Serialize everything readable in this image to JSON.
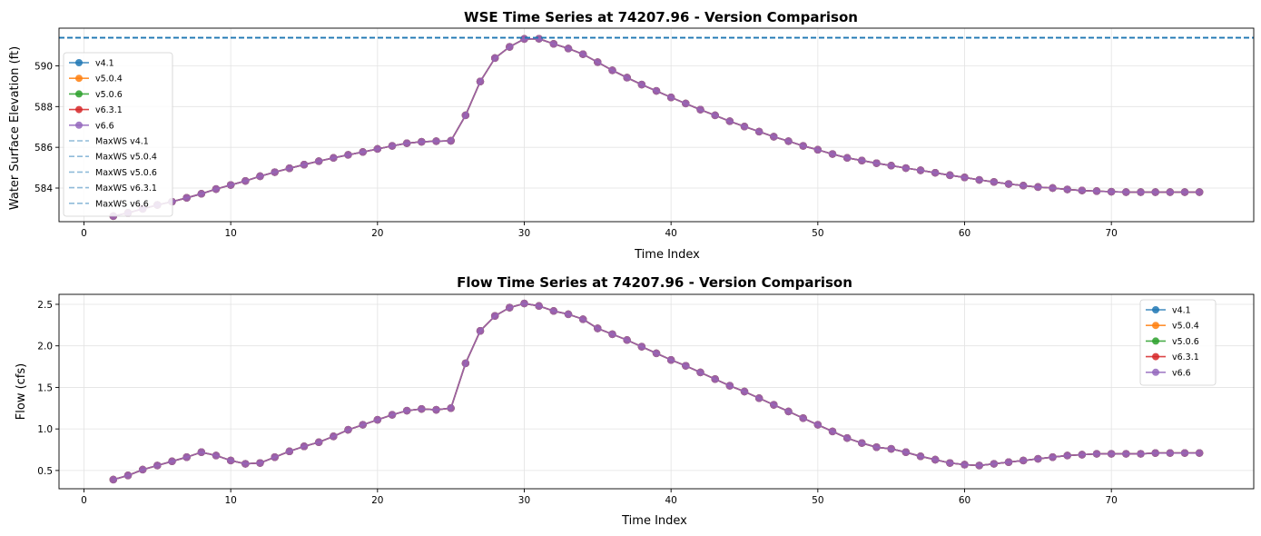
{
  "chart_data": [
    {
      "type": "line",
      "title": "WSE Time Series at 74207.96 - Version Comparison",
      "xlabel": "Time Index",
      "ylabel": "Water Surface Elevation (ft)",
      "xlim": [
        -1.7,
        79.7
      ],
      "ylim": [
        582.35,
        591.85
      ],
      "xticks": [
        0,
        10,
        20,
        30,
        40,
        50,
        60,
        70
      ],
      "yticks": [
        584,
        586,
        588,
        590
      ],
      "grid": true,
      "legend_position": "upper-left",
      "x": [
        2,
        3,
        4,
        5,
        6,
        7,
        8,
        9,
        10,
        11,
        12,
        13,
        14,
        15,
        16,
        17,
        18,
        19,
        20,
        21,
        22,
        23,
        24,
        25,
        26,
        27,
        28,
        29,
        30,
        31,
        32,
        33,
        34,
        35,
        36,
        37,
        38,
        39,
        40,
        41,
        42,
        43,
        44,
        45,
        46,
        47,
        48,
        49,
        50,
        51,
        52,
        53,
        54,
        55,
        56,
        57,
        58,
        59,
        60,
        61,
        62,
        63,
        64,
        65,
        66,
        67,
        68,
        69,
        70,
        71,
        72,
        73,
        74,
        75,
        76
      ],
      "series": [
        {
          "name": "v4.1",
          "color": "#1f77b4",
          "style": "line-marker",
          "values": [
            582.62,
            582.78,
            582.98,
            583.17,
            583.33,
            583.52,
            583.72,
            583.95,
            584.15,
            584.35,
            584.58,
            584.78,
            584.97,
            585.15,
            585.32,
            585.48,
            585.63,
            585.77,
            585.92,
            586.07,
            586.2,
            586.27,
            586.3,
            586.32,
            587.57,
            589.23,
            590.38,
            590.93,
            591.32,
            591.33,
            591.08,
            590.85,
            590.57,
            590.18,
            589.78,
            589.42,
            589.08,
            588.77,
            588.45,
            588.15,
            587.85,
            587.57,
            587.28,
            587.02,
            586.77,
            586.52,
            586.3,
            586.07,
            585.88,
            585.67,
            585.48,
            585.35,
            585.22,
            585.1,
            584.98,
            584.87,
            584.75,
            584.63,
            584.52,
            584.4,
            584.3,
            584.2,
            584.12,
            584.05,
            584.0,
            583.93,
            583.88,
            583.85,
            583.82,
            583.8,
            583.8,
            583.8,
            583.8,
            583.8,
            583.8
          ]
        },
        {
          "name": "v5.0.4",
          "color": "#ff7f0e",
          "style": "line-marker",
          "values": [
            582.62,
            582.78,
            582.98,
            583.17,
            583.33,
            583.52,
            583.72,
            583.95,
            584.15,
            584.35,
            584.58,
            584.78,
            584.97,
            585.15,
            585.32,
            585.48,
            585.63,
            585.77,
            585.92,
            586.07,
            586.2,
            586.27,
            586.3,
            586.32,
            587.57,
            589.23,
            590.38,
            590.93,
            591.32,
            591.33,
            591.08,
            590.85,
            590.57,
            590.18,
            589.78,
            589.42,
            589.08,
            588.77,
            588.45,
            588.15,
            587.85,
            587.57,
            587.28,
            587.02,
            586.77,
            586.52,
            586.3,
            586.07,
            585.88,
            585.67,
            585.48,
            585.35,
            585.22,
            585.1,
            584.98,
            584.87,
            584.75,
            584.63,
            584.52,
            584.4,
            584.3,
            584.2,
            584.12,
            584.05,
            584.0,
            583.93,
            583.88,
            583.85,
            583.82,
            583.8,
            583.8,
            583.8,
            583.8,
            583.8,
            583.8
          ]
        },
        {
          "name": "v5.0.6",
          "color": "#2ca02c",
          "style": "line-marker",
          "values": [
            582.62,
            582.78,
            582.98,
            583.17,
            583.33,
            583.52,
            583.72,
            583.95,
            584.15,
            584.35,
            584.58,
            584.78,
            584.97,
            585.15,
            585.32,
            585.48,
            585.63,
            585.77,
            585.92,
            586.07,
            586.2,
            586.27,
            586.3,
            586.32,
            587.57,
            589.23,
            590.38,
            590.93,
            591.32,
            591.33,
            591.08,
            590.85,
            590.57,
            590.18,
            589.78,
            589.42,
            589.08,
            588.77,
            588.45,
            588.15,
            587.85,
            587.57,
            587.28,
            587.02,
            586.77,
            586.52,
            586.3,
            586.07,
            585.88,
            585.67,
            585.48,
            585.35,
            585.22,
            585.1,
            584.98,
            584.87,
            584.75,
            584.63,
            584.52,
            584.4,
            584.3,
            584.2,
            584.12,
            584.05,
            584.0,
            583.93,
            583.88,
            583.85,
            583.82,
            583.8,
            583.8,
            583.8,
            583.8,
            583.8,
            583.8
          ]
        },
        {
          "name": "v6.3.1",
          "color": "#d62728",
          "style": "line-marker",
          "values": [
            582.62,
            582.78,
            582.98,
            583.17,
            583.33,
            583.52,
            583.72,
            583.95,
            584.15,
            584.35,
            584.58,
            584.78,
            584.97,
            585.15,
            585.32,
            585.48,
            585.63,
            585.77,
            585.92,
            586.07,
            586.2,
            586.27,
            586.3,
            586.32,
            587.57,
            589.23,
            590.38,
            590.93,
            591.32,
            591.33,
            591.08,
            590.85,
            590.57,
            590.18,
            589.78,
            589.42,
            589.08,
            588.77,
            588.45,
            588.15,
            587.85,
            587.57,
            587.28,
            587.02,
            586.77,
            586.52,
            586.3,
            586.07,
            585.88,
            585.67,
            585.48,
            585.35,
            585.22,
            585.1,
            584.98,
            584.87,
            584.75,
            584.63,
            584.52,
            584.4,
            584.3,
            584.2,
            584.12,
            584.05,
            584.0,
            583.93,
            583.88,
            583.85,
            583.82,
            583.8,
            583.8,
            583.8,
            583.8,
            583.8,
            583.8
          ]
        },
        {
          "name": "v6.6",
          "color": "#9467bd",
          "style": "line-marker",
          "values": [
            582.62,
            582.78,
            582.98,
            583.17,
            583.33,
            583.52,
            583.72,
            583.95,
            584.15,
            584.35,
            584.58,
            584.78,
            584.97,
            585.15,
            585.32,
            585.48,
            585.63,
            585.77,
            585.92,
            586.07,
            586.2,
            586.27,
            586.3,
            586.32,
            587.57,
            589.23,
            590.38,
            590.93,
            591.32,
            591.33,
            591.08,
            590.85,
            590.57,
            590.18,
            589.78,
            589.42,
            589.08,
            588.77,
            588.45,
            588.15,
            587.85,
            587.57,
            587.28,
            587.02,
            586.77,
            586.52,
            586.3,
            586.07,
            585.88,
            585.67,
            585.48,
            585.35,
            585.22,
            585.1,
            584.98,
            584.87,
            584.75,
            584.63,
            584.52,
            584.4,
            584.3,
            584.2,
            584.12,
            584.05,
            584.0,
            583.93,
            583.88,
            583.85,
            583.82,
            583.8,
            583.8,
            583.8,
            583.8,
            583.8,
            583.8
          ]
        },
        {
          "name": "MaxWS v4.1",
          "color": "#1f77b4",
          "style": "hline-dashed",
          "y": 591.38
        },
        {
          "name": "MaxWS v5.0.4",
          "color": "#1f77b4",
          "style": "hline-dashed",
          "y": 591.38
        },
        {
          "name": "MaxWS v5.0.6",
          "color": "#1f77b4",
          "style": "hline-dashed",
          "y": 591.38
        },
        {
          "name": "MaxWS v6.3.1",
          "color": "#1f77b4",
          "style": "hline-dashed",
          "y": 591.38
        },
        {
          "name": "MaxWS v6.6",
          "color": "#1f77b4",
          "style": "hline-dashed",
          "y": 591.38
        }
      ]
    },
    {
      "type": "line",
      "title": "Flow Time Series at 74207.96 - Version Comparison",
      "xlabel": "Time Index",
      "ylabel": "Flow (cfs)",
      "xlim": [
        -1.7,
        79.7
      ],
      "ylim": [
        0.28,
        2.62
      ],
      "xticks": [
        0,
        10,
        20,
        30,
        40,
        50,
        60,
        70
      ],
      "yticks": [
        0.5,
        1.0,
        1.5,
        2.0,
        2.5
      ],
      "ytick_labels": [
        "0.5",
        "1.0",
        "1.5",
        "2.0",
        "2.5"
      ],
      "grid": true,
      "legend_position": "upper-right",
      "x": [
        2,
        3,
        4,
        5,
        6,
        7,
        8,
        9,
        10,
        11,
        12,
        13,
        14,
        15,
        16,
        17,
        18,
        19,
        20,
        21,
        22,
        23,
        24,
        25,
        26,
        27,
        28,
        29,
        30,
        31,
        32,
        33,
        34,
        35,
        36,
        37,
        38,
        39,
        40,
        41,
        42,
        43,
        44,
        45,
        46,
        47,
        48,
        49,
        50,
        51,
        52,
        53,
        54,
        55,
        56,
        57,
        58,
        59,
        60,
        61,
        62,
        63,
        64,
        65,
        66,
        67,
        68,
        69,
        70,
        71,
        72,
        73,
        74,
        75,
        76
      ],
      "series": [
        {
          "name": "v4.1",
          "color": "#1f77b4",
          "style": "line-marker",
          "values": [
            0.39,
            0.44,
            0.51,
            0.56,
            0.61,
            0.66,
            0.72,
            0.68,
            0.62,
            0.58,
            0.59,
            0.66,
            0.73,
            0.79,
            0.84,
            0.91,
            0.99,
            1.05,
            1.11,
            1.17,
            1.22,
            1.24,
            1.23,
            1.25,
            1.79,
            2.18,
            2.36,
            2.46,
            2.51,
            2.48,
            2.42,
            2.38,
            2.32,
            2.21,
            2.14,
            2.07,
            1.99,
            1.91,
            1.83,
            1.76,
            1.68,
            1.6,
            1.52,
            1.45,
            1.37,
            1.29,
            1.21,
            1.13,
            1.05,
            0.97,
            0.89,
            0.83,
            0.78,
            0.76,
            0.72,
            0.67,
            0.63,
            0.59,
            0.57,
            0.56,
            0.58,
            0.6,
            0.62,
            0.64,
            0.66,
            0.68,
            0.69,
            0.7,
            0.7,
            0.7,
            0.7,
            0.71,
            0.71,
            0.71,
            0.71
          ]
        },
        {
          "name": "v5.0.4",
          "color": "#ff7f0e",
          "style": "line-marker",
          "values": [
            0.39,
            0.44,
            0.51,
            0.56,
            0.61,
            0.66,
            0.72,
            0.68,
            0.62,
            0.58,
            0.59,
            0.66,
            0.73,
            0.79,
            0.84,
            0.91,
            0.99,
            1.05,
            1.11,
            1.17,
            1.22,
            1.24,
            1.23,
            1.25,
            1.79,
            2.18,
            2.36,
            2.46,
            2.51,
            2.48,
            2.42,
            2.38,
            2.32,
            2.21,
            2.14,
            2.07,
            1.99,
            1.91,
            1.83,
            1.76,
            1.68,
            1.6,
            1.52,
            1.45,
            1.37,
            1.29,
            1.21,
            1.13,
            1.05,
            0.97,
            0.89,
            0.83,
            0.78,
            0.76,
            0.72,
            0.67,
            0.63,
            0.59,
            0.57,
            0.56,
            0.58,
            0.6,
            0.62,
            0.64,
            0.66,
            0.68,
            0.69,
            0.7,
            0.7,
            0.7,
            0.7,
            0.71,
            0.71,
            0.71,
            0.71
          ]
        },
        {
          "name": "v5.0.6",
          "color": "#2ca02c",
          "style": "line-marker",
          "values": [
            0.39,
            0.44,
            0.51,
            0.56,
            0.61,
            0.66,
            0.72,
            0.68,
            0.62,
            0.58,
            0.59,
            0.66,
            0.73,
            0.79,
            0.84,
            0.91,
            0.99,
            1.05,
            1.11,
            1.17,
            1.22,
            1.24,
            1.23,
            1.25,
            1.79,
            2.18,
            2.36,
            2.46,
            2.51,
            2.48,
            2.42,
            2.38,
            2.32,
            2.21,
            2.14,
            2.07,
            1.99,
            1.91,
            1.83,
            1.76,
            1.68,
            1.6,
            1.52,
            1.45,
            1.37,
            1.29,
            1.21,
            1.13,
            1.05,
            0.97,
            0.89,
            0.83,
            0.78,
            0.76,
            0.72,
            0.67,
            0.63,
            0.59,
            0.57,
            0.56,
            0.58,
            0.6,
            0.62,
            0.64,
            0.66,
            0.68,
            0.69,
            0.7,
            0.7,
            0.7,
            0.7,
            0.71,
            0.71,
            0.71,
            0.71
          ]
        },
        {
          "name": "v6.3.1",
          "color": "#d62728",
          "style": "line-marker",
          "values": [
            0.39,
            0.44,
            0.51,
            0.56,
            0.61,
            0.66,
            0.72,
            0.68,
            0.62,
            0.58,
            0.59,
            0.66,
            0.73,
            0.79,
            0.84,
            0.91,
            0.99,
            1.05,
            1.11,
            1.17,
            1.22,
            1.24,
            1.23,
            1.25,
            1.79,
            2.18,
            2.36,
            2.46,
            2.51,
            2.48,
            2.42,
            2.38,
            2.32,
            2.21,
            2.14,
            2.07,
            1.99,
            1.91,
            1.83,
            1.76,
            1.68,
            1.6,
            1.52,
            1.45,
            1.37,
            1.29,
            1.21,
            1.13,
            1.05,
            0.97,
            0.89,
            0.83,
            0.78,
            0.76,
            0.72,
            0.67,
            0.63,
            0.59,
            0.57,
            0.56,
            0.58,
            0.6,
            0.62,
            0.64,
            0.66,
            0.68,
            0.69,
            0.7,
            0.7,
            0.7,
            0.7,
            0.71,
            0.71,
            0.71,
            0.71
          ]
        },
        {
          "name": "v6.6",
          "color": "#9467bd",
          "style": "line-marker",
          "values": [
            0.39,
            0.44,
            0.51,
            0.56,
            0.61,
            0.66,
            0.72,
            0.68,
            0.62,
            0.58,
            0.59,
            0.66,
            0.73,
            0.79,
            0.84,
            0.91,
            0.99,
            1.05,
            1.11,
            1.17,
            1.22,
            1.24,
            1.23,
            1.25,
            1.79,
            2.18,
            2.36,
            2.46,
            2.51,
            2.48,
            2.42,
            2.38,
            2.32,
            2.21,
            2.14,
            2.07,
            1.99,
            1.91,
            1.83,
            1.76,
            1.68,
            1.6,
            1.52,
            1.45,
            1.37,
            1.29,
            1.21,
            1.13,
            1.05,
            0.97,
            0.89,
            0.83,
            0.78,
            0.76,
            0.72,
            0.67,
            0.63,
            0.59,
            0.57,
            0.56,
            0.58,
            0.6,
            0.62,
            0.64,
            0.66,
            0.68,
            0.69,
            0.7,
            0.7,
            0.7,
            0.7,
            0.71,
            0.71,
            0.71,
            0.71
          ]
        }
      ]
    }
  ]
}
